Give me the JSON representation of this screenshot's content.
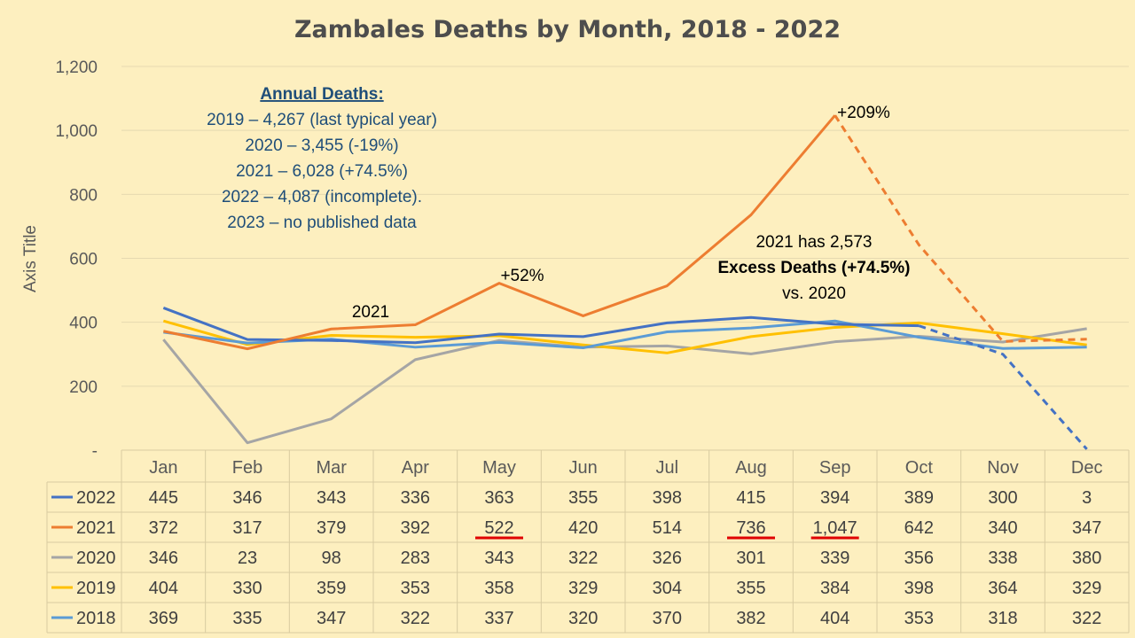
{
  "chart_data": {
    "type": "line",
    "title": "Zambales Deaths by Month, 2018 - 2022",
    "ylabel": "Axis Title",
    "xlabel": "",
    "ylim": [
      0,
      1200
    ],
    "yticks": [
      "-",
      "200",
      "400",
      "600",
      "800",
      "1,000",
      "1,200"
    ],
    "grid": true,
    "legend": "data-table",
    "categories": [
      "Jan",
      "Feb",
      "Mar",
      "Apr",
      "May",
      "Jun",
      "Jul",
      "Aug",
      "Sep",
      "Oct",
      "Nov",
      "Dec"
    ],
    "series": [
      {
        "name": "2022",
        "color": "#4472c4",
        "values": [
          445,
          346,
          343,
          336,
          363,
          355,
          398,
          415,
          394,
          389,
          300,
          3
        ],
        "labels": [
          "445",
          "346",
          "343",
          "336",
          "363",
          "355",
          "398",
          "415",
          "394",
          "389",
          "300",
          "3"
        ],
        "dashed_from": 9
      },
      {
        "name": "2021",
        "color": "#ed7d31",
        "values": [
          372,
          317,
          379,
          392,
          522,
          420,
          514,
          736,
          1047,
          642,
          340,
          347
        ],
        "labels": [
          "372",
          "317",
          "379",
          "392",
          "522",
          "420",
          "514",
          "736",
          "1,047",
          "642",
          "340",
          "347"
        ],
        "dashed_from": 8
      },
      {
        "name": "2020",
        "color": "#a5a5a5",
        "values": [
          346,
          23,
          98,
          283,
          343,
          322,
          326,
          301,
          339,
          356,
          338,
          380
        ],
        "labels": [
          "346",
          "23",
          "98",
          "283",
          "343",
          "322",
          "326",
          "301",
          "339",
          "356",
          "338",
          "380"
        ]
      },
      {
        "name": "2019",
        "color": "#ffc000",
        "values": [
          404,
          330,
          359,
          353,
          358,
          329,
          304,
          355,
          384,
          398,
          364,
          329
        ],
        "labels": [
          "404",
          "330",
          "359",
          "353",
          "358",
          "329",
          "304",
          "355",
          "384",
          "398",
          "364",
          "329"
        ]
      },
      {
        "name": "2018",
        "color": "#5b9bd5",
        "values": [
          369,
          335,
          347,
          322,
          337,
          320,
          370,
          382,
          404,
          353,
          318,
          322
        ],
        "labels": [
          "369",
          "335",
          "347",
          "322",
          "337",
          "320",
          "370",
          "382",
          "404",
          "353",
          "318",
          "322"
        ]
      }
    ],
    "underlined_cells": [
      {
        "series": "2021",
        "category": "May"
      },
      {
        "series": "2021",
        "category": "Aug"
      },
      {
        "series": "2021",
        "category": "Sep"
      }
    ],
    "annotations": {
      "annual_heading": "Annual Deaths:",
      "annual_lines": [
        "2019 – 4,267 (last typical year)",
        "2020 – 3,455 (-19%)",
        "2021 – 6,028 (+74.5%)",
        "2022 – 4,087 (incomplete).",
        "2023 – no published data"
      ],
      "label_2021": "2021",
      "pct_may": "+52%",
      "pct_sep": "+209%",
      "excess_line1": "2021 has 2,573",
      "excess_line2": "Excess Deaths (+74.5%)",
      "excess_line3": "vs. 2020"
    }
  }
}
